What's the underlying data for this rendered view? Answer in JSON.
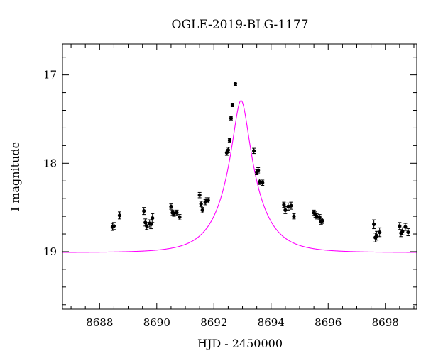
{
  "chart_data": {
    "type": "scatter",
    "title": "OGLE-2019-BLG-1177",
    "xlabel": "HJD - 2450000",
    "ylabel": "I magnitude",
    "xlim": [
      8686.7,
      8699.1
    ],
    "ylim": [
      19.65,
      16.65
    ],
    "y_inverted": true,
    "xticks": [
      8688,
      8690,
      8692,
      8694,
      8696,
      8698
    ],
    "xtick_labels": [
      "8688",
      "8690",
      "8692",
      "8694",
      "8696",
      "8698"
    ],
    "yticks": [
      17,
      18,
      19
    ],
    "ytick_labels": [
      "17",
      "18",
      "19"
    ],
    "x_minor_step": 0.5,
    "y_minor_step": 0.2,
    "grid": false,
    "model_curve": {
      "color": "#ff00ff",
      "t0": 8692.95,
      "peak_mag": 17.29,
      "baseline_mag": 19.01,
      "tE": 1.1,
      "u0": 0.23
    },
    "series": [
      {
        "color": "#000000",
        "x": [
          8688.45,
          8688.5,
          8688.7,
          8689.55,
          8689.6,
          8689.65,
          8689.75,
          8689.8,
          8689.85,
          8690.5,
          8690.55,
          8690.6,
          8690.7,
          8690.8,
          8691.5,
          8691.55,
          8691.6,
          8691.7,
          8691.75,
          8691.8,
          8692.45,
          8692.5,
          8692.55,
          8692.6,
          8692.65,
          8692.75,
          8693.4,
          8693.5,
          8693.55,
          8693.6,
          8693.7,
          8694.45,
          8694.5,
          8694.6,
          8694.7,
          8694.8,
          8695.5,
          8695.55,
          8695.6,
          8695.7,
          8695.75,
          8695.8,
          8697.6,
          8697.65,
          8697.7,
          8697.8,
          8698.5,
          8698.55,
          8698.6,
          8698.7,
          8698.8
        ],
        "y": [
          18.72,
          18.71,
          18.59,
          18.54,
          18.67,
          18.71,
          18.68,
          18.69,
          18.62,
          18.49,
          18.56,
          18.57,
          18.56,
          18.61,
          18.36,
          18.46,
          18.53,
          18.44,
          18.42,
          18.42,
          17.88,
          17.85,
          17.74,
          17.49,
          17.34,
          17.1,
          17.86,
          18.1,
          18.08,
          18.21,
          18.22,
          18.47,
          18.53,
          18.49,
          18.48,
          18.6,
          18.56,
          18.58,
          18.6,
          18.61,
          18.66,
          18.65,
          18.69,
          18.84,
          18.82,
          18.78,
          18.71,
          18.79,
          18.77,
          18.72,
          18.78
        ],
        "yerr": [
          0.04,
          0.04,
          0.04,
          0.04,
          0.04,
          0.04,
          0.04,
          0.05,
          0.05,
          0.03,
          0.03,
          0.03,
          0.03,
          0.03,
          0.03,
          0.03,
          0.03,
          0.03,
          0.03,
          0.03,
          0.03,
          0.03,
          0.02,
          0.02,
          0.02,
          0.02,
          0.03,
          0.03,
          0.03,
          0.03,
          0.03,
          0.03,
          0.04,
          0.04,
          0.04,
          0.03,
          0.03,
          0.03,
          0.03,
          0.03,
          0.03,
          0.03,
          0.05,
          0.05,
          0.05,
          0.05,
          0.04,
          0.04,
          0.04,
          0.04,
          0.04
        ]
      }
    ]
  }
}
